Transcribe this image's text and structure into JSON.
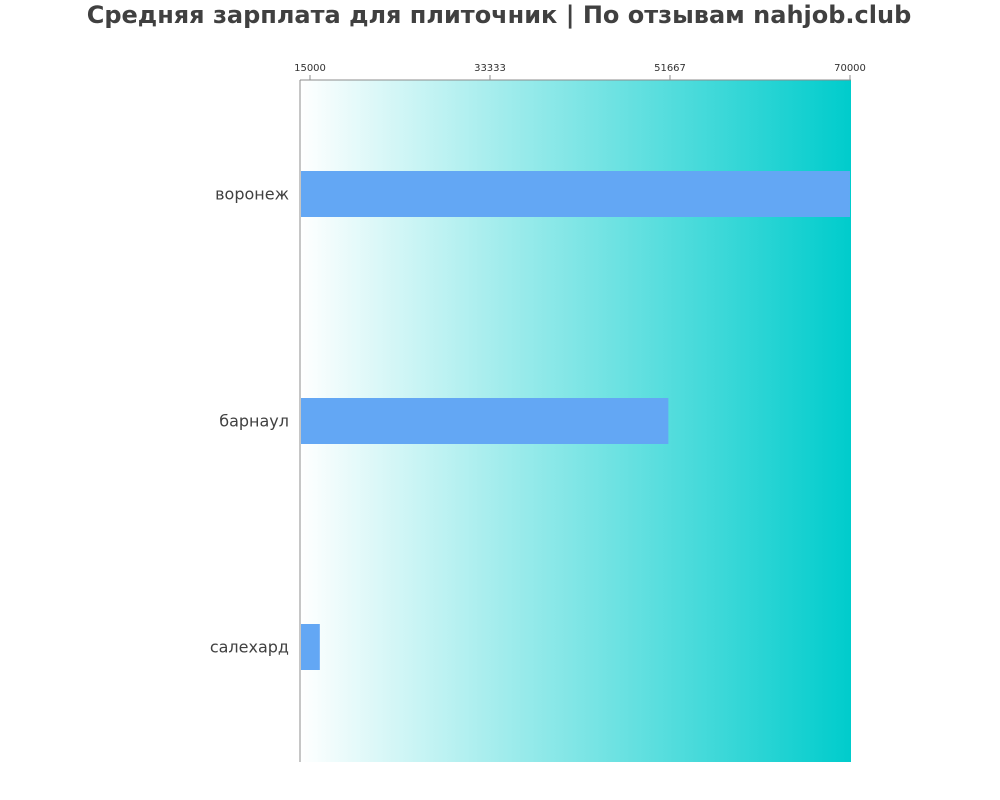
{
  "chart_data": {
    "type": "bar",
    "orientation": "horizontal",
    "title": "Средняя зарплата для плиточник | По отзывам nahjob.club",
    "xlabel": "",
    "ylabel": "",
    "xlim": [
      15000,
      70000
    ],
    "ticks": [
      15000,
      33333,
      51667,
      70000
    ],
    "tick_labels": [
      "15000",
      "33333",
      "51667",
      "70000"
    ],
    "categories": [
      "воронеж",
      "барнаул",
      "салехард"
    ],
    "values": [
      70000,
      51500,
      16000
    ],
    "grid": false,
    "legend": "none"
  },
  "colors": {
    "bar": "#63a7f4",
    "gradient_start": "#ffffff",
    "gradient_end": "#00cccc",
    "text": "#404040",
    "tick_text": "#333333",
    "axis": "#8c8c8c"
  }
}
